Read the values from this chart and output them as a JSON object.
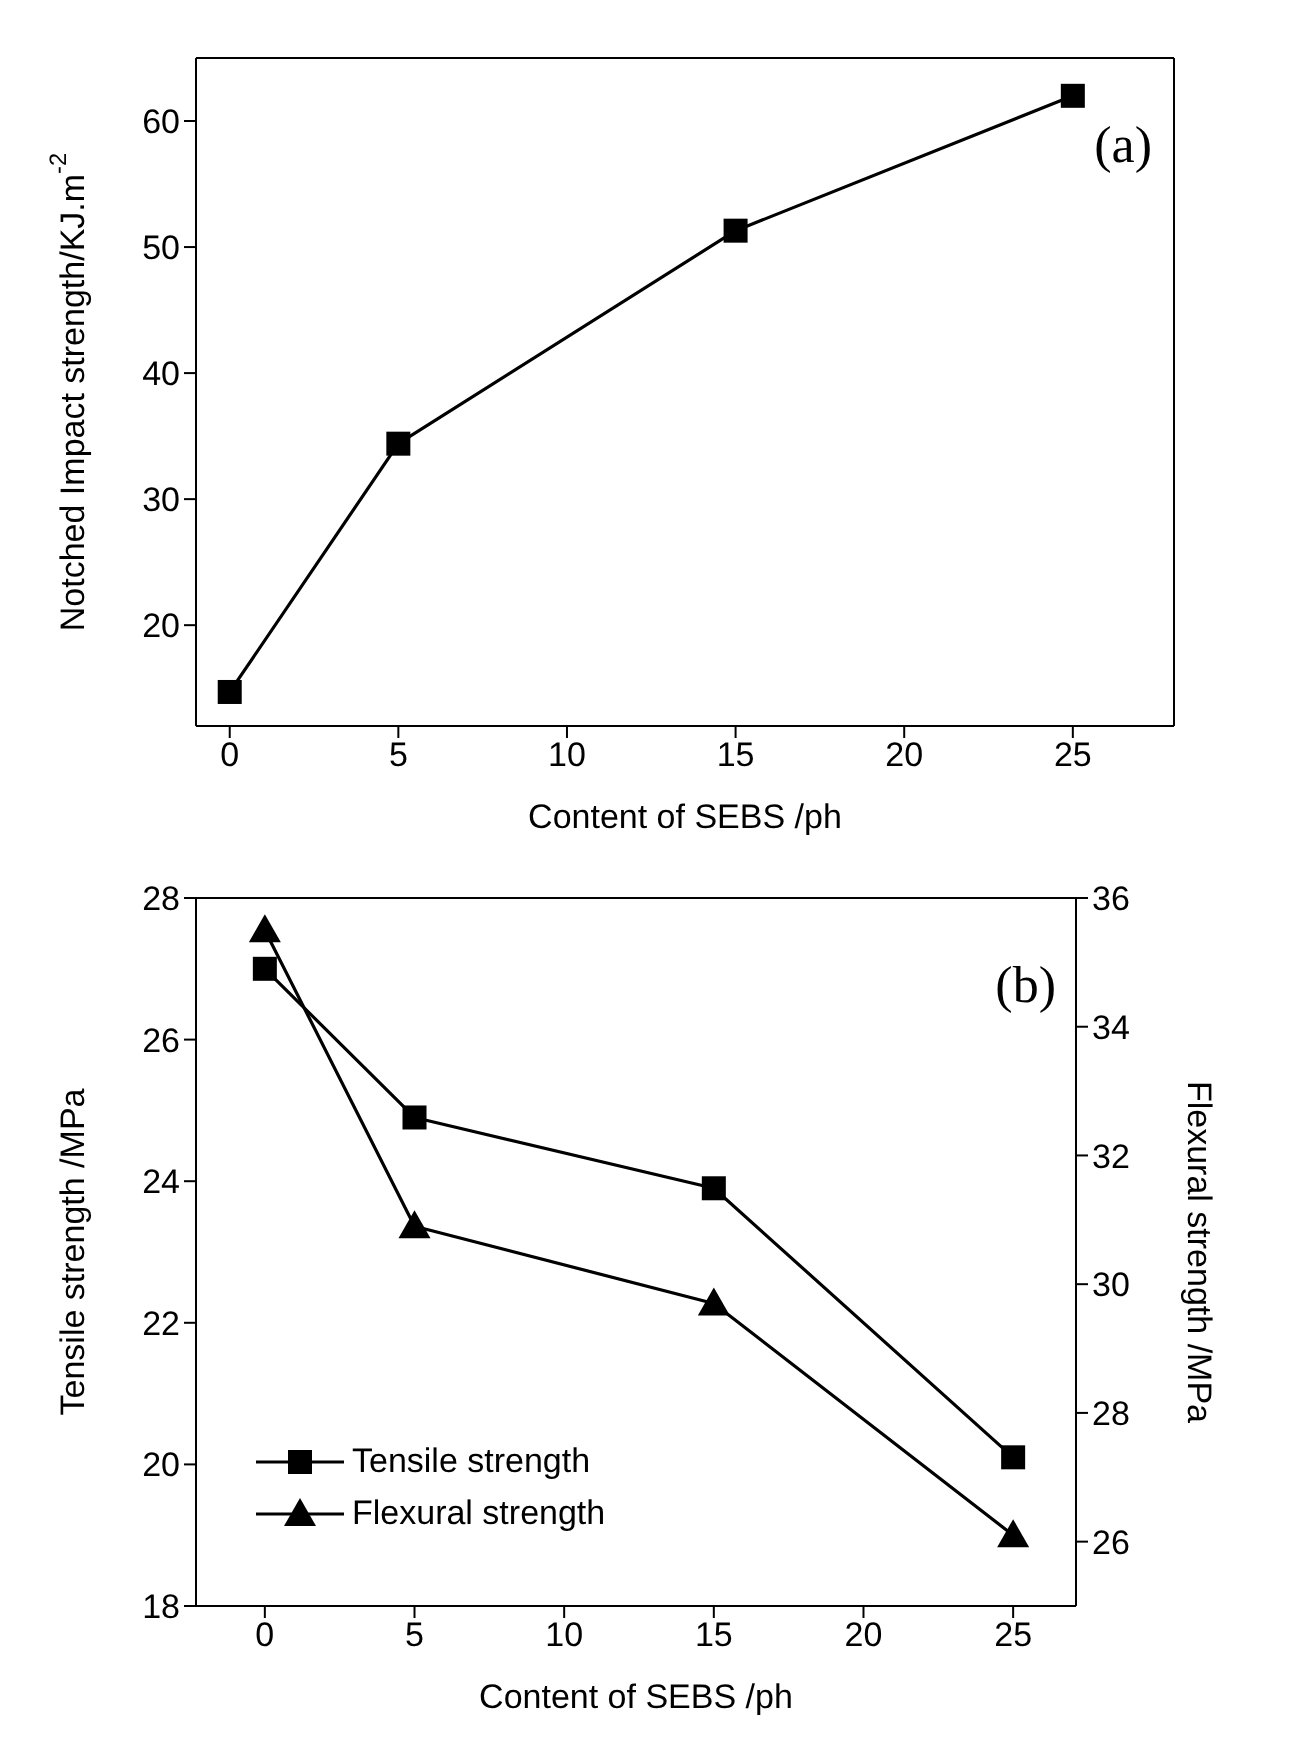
{
  "chart_data": [
    {
      "type": "line",
      "xlabel": "Content of SEBS /ph",
      "ylabel": "Notched Impact strength/KJ.m$^{-2}$",
      "x": [
        0,
        5,
        15,
        25
      ],
      "xlim": [
        -1,
        28
      ],
      "xticks": [
        0,
        5,
        10,
        15,
        20,
        25
      ],
      "ylim": [
        12,
        65
      ],
      "yticks": [
        20,
        30,
        40,
        50,
        60
      ],
      "annotations": [
        "(a)"
      ],
      "legend": false,
      "series": [
        {
          "color": "#000000",
          "values": [
            14.7,
            34.4,
            51.3,
            62.0
          ],
          "marker": "square"
        }
      ]
    },
    {
      "type": "line",
      "xlabel": "Content of SEBS /ph",
      "ylabel": "Tensile strength /MPa",
      "y2label": "Flexural strength /MPa",
      "x": [
        0,
        5,
        15,
        25
      ],
      "xlim": [
        -2.3,
        27.1
      ],
      "xticks": [
        0,
        5,
        10,
        15,
        20,
        25
      ],
      "ylim": [
        18,
        28
      ],
      "yticks": [
        18,
        20,
        22,
        24,
        26,
        28
      ],
      "y2lim": [
        25,
        36
      ],
      "y2ticks": [
        26,
        28,
        30,
        32,
        34,
        36
      ],
      "annotations": [
        "(b)"
      ],
      "legend": "bottom left",
      "series": [
        {
          "name": "Tensile strength",
          "color": "#000000",
          "values": [
            27.0,
            24.9,
            23.9,
            20.1
          ],
          "marker": "square"
        },
        {
          "name": "Flexural strength",
          "color": "#000000",
          "values": [
            35.5,
            30.9,
            29.7,
            26.1
          ],
          "marker": "triangle",
          "axis": "y2"
        }
      ]
    }
  ]
}
